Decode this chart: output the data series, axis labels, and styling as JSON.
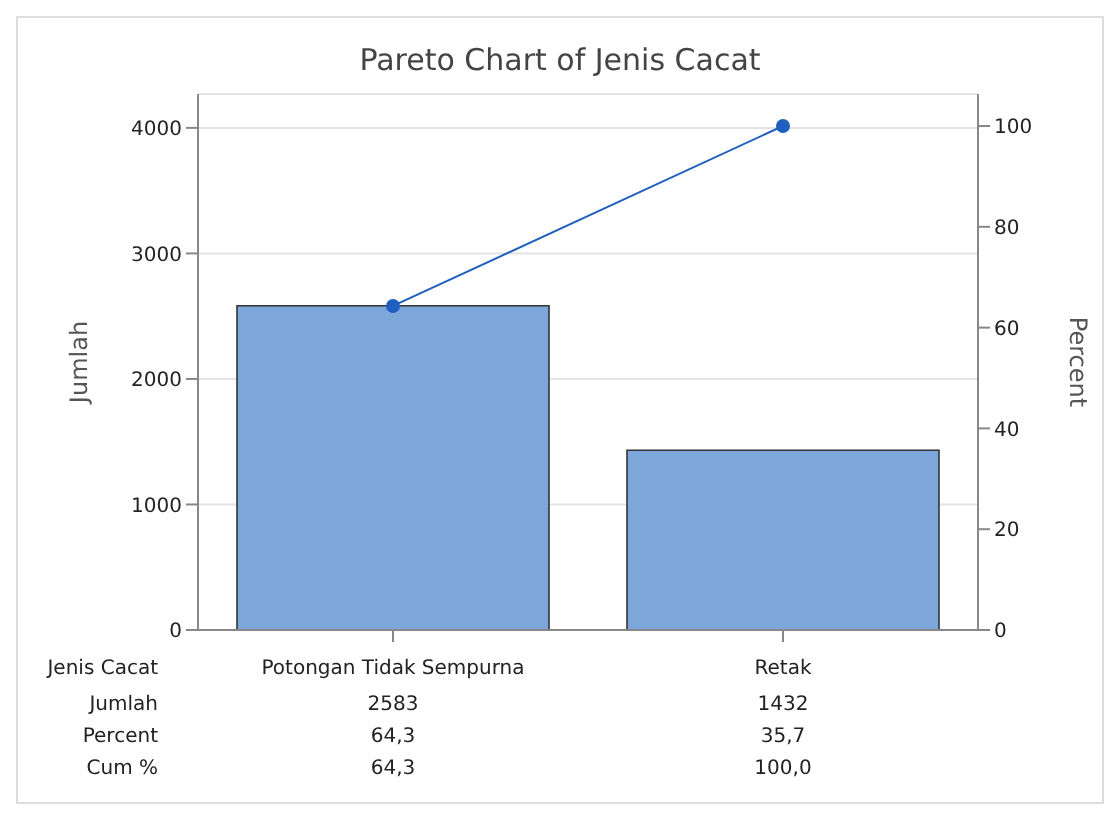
{
  "chart_data": {
    "type": "bar",
    "title": "Pareto Chart of Jenis Cacat",
    "xlabel": "Jenis Cacat",
    "ylabel": "Jumlah",
    "y2label": "Percent",
    "categories": [
      "Potongan Tidak Sempurna",
      "Retak"
    ],
    "series": [
      {
        "color": "#7da6db",
        "values": [
          2583,
          1432
        ],
        "value_labels": [
          "2583",
          "1432"
        ]
      },
      {
        "type": "line",
        "axis": "y2",
        "color": "#1f5fbf",
        "values": [
          64.3,
          100
        ],
        "value_labels": [
          "64,3",
          "100,0"
        ],
        "marker": "circle"
      }
    ],
    "annotations": [
      "Jumlah",
      "Percent",
      "Cum %",
      "64,3",
      "35,7"
    ],
    "ylim": [
      0,
      4270
    ],
    "yticks": [
      0,
      1000,
      2000,
      3000,
      4000
    ],
    "y2lim": [
      0,
      106.35
    ],
    "y2ticks": [
      0,
      20,
      40,
      60,
      80,
      100
    ],
    "grid": "y"
  }
}
